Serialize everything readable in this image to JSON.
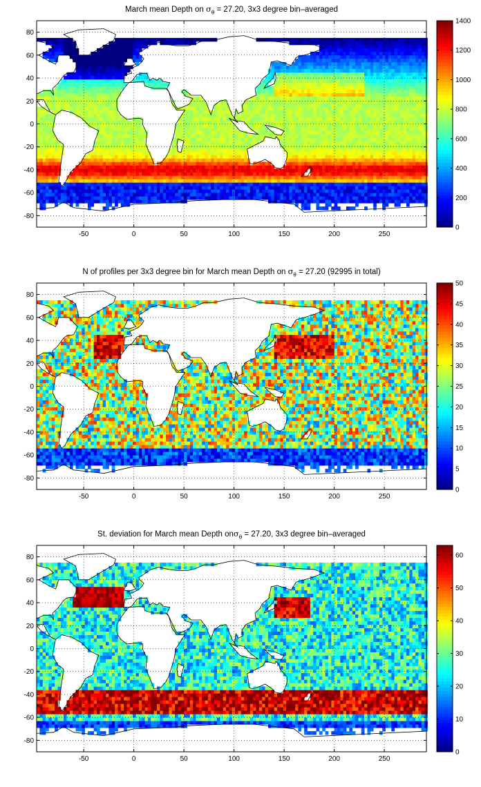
{
  "panels": [
    {
      "id": "mean-depth",
      "title_pre": "March mean Depth on ",
      "title_sigma": "σ",
      "title_sub": "θ",
      "title_post": " = 27.20, 3x3 degree bin–averaged",
      "colorbar_ticks": [
        0,
        200,
        400,
        600,
        800,
        1000,
        1200,
        1400
      ],
      "colorbar_range": [
        0,
        1400
      ]
    },
    {
      "id": "n-profiles",
      "title_pre": "N of profiles per 3x3 degree bin for March mean Depth on ",
      "title_sigma": "σ",
      "title_sub": "θ",
      "title_post": " = 27.20 (92995 in total)",
      "colorbar_ticks": [
        0,
        5,
        10,
        15,
        20,
        25,
        30,
        35,
        40,
        45,
        50
      ],
      "colorbar_range": [
        0,
        50
      ]
    },
    {
      "id": "std-deviation",
      "title_pre": "St. deviation for March mean Depth on",
      "title_sigma": "σ",
      "title_sub": "θ",
      "title_post": " = 27.20, 3x3 degree bin–averaged",
      "colorbar_ticks": [
        0,
        10,
        20,
        30,
        40,
        50,
        60
      ],
      "colorbar_range": [
        0,
        63
      ]
    }
  ],
  "axes": {
    "x_ticks": [
      -50,
      0,
      50,
      100,
      150,
      200,
      250
    ],
    "y_ticks": [
      -80,
      -60,
      -40,
      -20,
      0,
      20,
      40,
      60,
      80
    ],
    "x_range": [
      -97,
      292
    ],
    "y_range": [
      -90,
      90
    ],
    "grid": "dotted",
    "colormap": "jet"
  }
}
